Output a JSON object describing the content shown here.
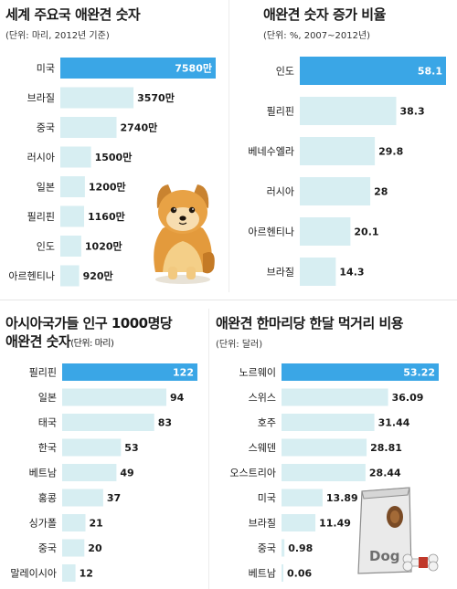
{
  "colors": {
    "highlight": "#3aa6e6",
    "bar": "#d7eef2",
    "highlight_text": "#ffffff",
    "text": "#1a1a1a"
  },
  "chart_data": [
    {
      "type": "bar",
      "orientation": "horizontal",
      "title": "세계 주요국 애완견 숫자",
      "subtitle": "(단위: 마리, 2012년 기준)",
      "categories": [
        "미국",
        "브라질",
        "중국",
        "러시아",
        "일본",
        "필리핀",
        "인도",
        "아르헨티나"
      ],
      "values": [
        7580,
        3570,
        2740,
        1500,
        1200,
        1160,
        1020,
        920
      ],
      "labels": [
        "7580만",
        "3570만",
        "2740만",
        "1500만",
        "1200만",
        "1160만",
        "1020만",
        "920만"
      ],
      "xlim": [
        0,
        7580
      ],
      "highlight_index": 0
    },
    {
      "type": "bar",
      "orientation": "horizontal",
      "title": "애완견 숫자 증가 비율",
      "subtitle": "(단위: %, 2007~2012년)",
      "categories": [
        "인도",
        "필리핀",
        "베네수엘라",
        "러시아",
        "아르헨티나",
        "브라질"
      ],
      "values": [
        58.1,
        38.3,
        29.8,
        28,
        20.1,
        14.3
      ],
      "labels": [
        "58.1",
        "38.3",
        "29.8",
        "28",
        "20.1",
        "14.3"
      ],
      "xlim": [
        0,
        58.1
      ],
      "highlight_index": 0
    },
    {
      "type": "bar",
      "orientation": "horizontal",
      "title": "아시아국가들 인구 1000명당",
      "title2": "애완견 숫자",
      "title2_unit": "(단위: 마리)",
      "categories": [
        "필리핀",
        "일본",
        "태국",
        "한국",
        "베트남",
        "홍콩",
        "싱가폴",
        "중국",
        "말레이시아"
      ],
      "values": [
        122,
        94,
        83,
        53,
        49,
        37,
        21,
        20,
        12
      ],
      "labels": [
        "122",
        "94",
        "83",
        "53",
        "49",
        "37",
        "21",
        "20",
        "12"
      ],
      "xlim": [
        0,
        122
      ],
      "highlight_index": 0
    },
    {
      "type": "bar",
      "orientation": "horizontal",
      "title": "애완견 한마리당 한달 먹거리 비용",
      "subtitle": "(단위: 달러)",
      "categories": [
        "노르웨이",
        "스위스",
        "호주",
        "스웨덴",
        "오스트리아",
        "미국",
        "브라질",
        "중국",
        "베트남"
      ],
      "values": [
        53.22,
        36.09,
        31.44,
        28.81,
        28.44,
        13.89,
        11.49,
        0.98,
        0.06
      ],
      "labels": [
        "53.22",
        "36.09",
        "31.44",
        "28.81",
        "28.44",
        "13.89",
        "11.49",
        "0.98",
        "0.06"
      ],
      "xlim": [
        0,
        53.22
      ],
      "highlight_index": 0
    }
  ],
  "illustrations": {
    "dog_food_bag_text": "Dog"
  }
}
